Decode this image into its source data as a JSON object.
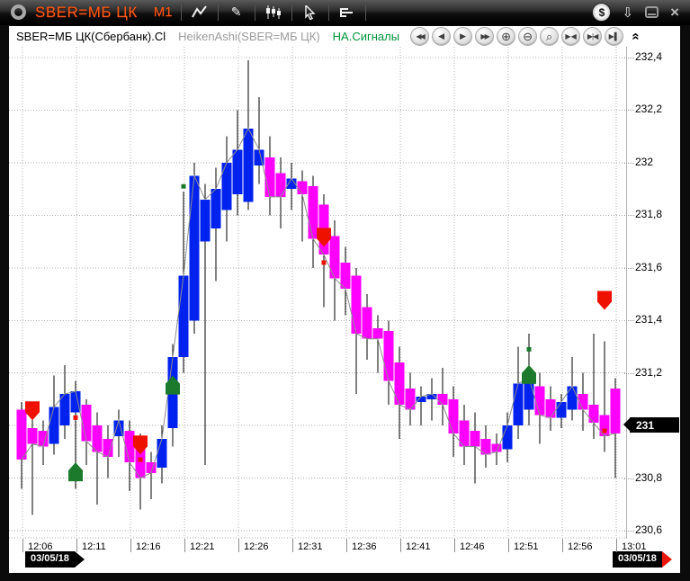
{
  "titlebar": {
    "ticker": "SBER=МБ ЦК",
    "timeframe": "M1"
  },
  "header": {
    "symbol": "SBER=МБ ЦК(Сбербанк).Cl",
    "indicator": "HeikenAshi(SBER=МБ ЦК)",
    "signals": "НА.Сигналы"
  },
  "icons": {
    "pencil": "✎",
    "dollar": "$",
    "download": "⇩",
    "close": "×",
    "rewind": "◀◀",
    "prev": "◀",
    "next": "▶",
    "ffwd": "▶▶",
    "zoom_in": "⊕",
    "zoom_out": "⊖",
    "zoom_box": "⌕",
    "squeeze": "▶◀",
    "squeeze_alt": "▶|◀",
    "go_end": "▶▌",
    "collapse": "«"
  },
  "axis": {
    "date_left": "03/05/18",
    "date_right": "03/05/18"
  },
  "chart_data": {
    "type": "candlestick-heikenashi",
    "title": "SBER=МБ ЦК(Сбербанк).Cl",
    "indicator": "HeikenAshi(SBER=МБ ЦК)",
    "signals_label": "НА.Сигналы",
    "ylim": [
      230.6,
      232.4
    ],
    "y_step": 0.2,
    "grid": true,
    "bull_color": "#0022ee",
    "bear_color": "#ff00ff",
    "signal_up_color": "#1c7a2d",
    "signal_down_color": "#ee1100",
    "line_color": "#8c8c8c",
    "last_price": {
      "label": "231",
      "price": 231.0
    },
    "y_ticks": [
      {
        "label": "232,4",
        "price": 232.4
      },
      {
        "label": "232,2",
        "price": 232.2
      },
      {
        "label": "232",
        "price": 232.0
      },
      {
        "label": "231,8",
        "price": 231.8
      },
      {
        "label": "231,6",
        "price": 231.6
      },
      {
        "label": "231,4",
        "price": 231.4
      },
      {
        "label": "231,2",
        "price": 231.2
      },
      {
        "label": "230,8",
        "price": 230.8
      },
      {
        "label": "230,6",
        "price": 230.6
      }
    ],
    "x_ticks": [
      "12:06",
      "12:11",
      "12:16",
      "12:21",
      "12:26",
      "12:31",
      "12:36",
      "12:41",
      "12:46",
      "12:51",
      "12:56",
      "13:01"
    ],
    "candles": [
      {
        "t": "12:06",
        "o": 231.06,
        "h": 231.09,
        "l": 230.76,
        "c": 230.87
      },
      {
        "t": "12:07",
        "o": 230.99,
        "h": 231.04,
        "l": 230.66,
        "c": 230.93
      },
      {
        "t": "12:08",
        "o": 230.98,
        "h": 231.02,
        "l": 230.85,
        "c": 230.92
      },
      {
        "t": "12:09",
        "o": 230.93,
        "h": 231.19,
        "l": 230.89,
        "c": 231.07
      },
      {
        "t": "12:10",
        "o": 231.0,
        "h": 231.23,
        "l": 230.95,
        "c": 231.12
      },
      {
        "t": "12:11",
        "o": 231.05,
        "h": 231.17,
        "l": 230.76,
        "c": 231.13
      },
      {
        "t": "12:12",
        "o": 231.08,
        "h": 231.1,
        "l": 230.85,
        "c": 230.94
      },
      {
        "t": "12:13",
        "o": 231.0,
        "h": 231.05,
        "l": 230.7,
        "c": 230.9
      },
      {
        "t": "12:14",
        "o": 230.95,
        "h": 231.0,
        "l": 230.8,
        "c": 230.88
      },
      {
        "t": "12:15",
        "o": 230.96,
        "h": 231.06,
        "l": 230.88,
        "c": 231.02
      },
      {
        "t": "12:16",
        "o": 230.98,
        "h": 231.02,
        "l": 230.75,
        "c": 230.86
      },
      {
        "t": "12:17",
        "o": 230.93,
        "h": 230.97,
        "l": 230.68,
        "c": 230.8
      },
      {
        "t": "12:18",
        "o": 230.86,
        "h": 230.9,
        "l": 230.72,
        "c": 230.82
      },
      {
        "t": "12:19",
        "o": 230.84,
        "h": 231.0,
        "l": 230.78,
        "c": 230.95
      },
      {
        "t": "12:20",
        "o": 230.99,
        "h": 231.31,
        "l": 230.92,
        "c": 231.26
      },
      {
        "t": "12:21",
        "o": 231.26,
        "h": 231.89,
        "l": 231.2,
        "c": 231.57
      },
      {
        "t": "12:22",
        "o": 231.4,
        "h": 232.0,
        "l": 231.35,
        "c": 231.95
      },
      {
        "t": "12:23",
        "o": 231.7,
        "h": 231.92,
        "l": 230.85,
        "c": 231.86
      },
      {
        "t": "12:24",
        "o": 231.75,
        "h": 231.98,
        "l": 231.55,
        "c": 231.9
      },
      {
        "t": "12:25",
        "o": 231.82,
        "h": 232.1,
        "l": 231.7,
        "c": 232.0
      },
      {
        "t": "12:26",
        "o": 231.88,
        "h": 232.2,
        "l": 231.8,
        "c": 232.05
      },
      {
        "t": "12:27",
        "o": 231.85,
        "h": 232.39,
        "l": 231.82,
        "c": 232.13
      },
      {
        "t": "12:28",
        "o": 231.99,
        "h": 232.25,
        "l": 231.92,
        "c": 232.05
      },
      {
        "t": "12:29",
        "o": 232.02,
        "h": 232.1,
        "l": 231.8,
        "c": 231.87
      },
      {
        "t": "12:30",
        "o": 231.96,
        "h": 232.02,
        "l": 231.75,
        "c": 231.87
      },
      {
        "t": "12:31",
        "o": 231.9,
        "h": 232.0,
        "l": 231.82,
        "c": 231.94
      },
      {
        "t": "12:32",
        "o": 231.93,
        "h": 231.97,
        "l": 231.7,
        "c": 231.88
      },
      {
        "t": "12:33",
        "o": 231.91,
        "h": 231.95,
        "l": 231.6,
        "c": 231.71
      },
      {
        "t": "12:34",
        "o": 231.84,
        "h": 231.88,
        "l": 231.45,
        "c": 231.65
      },
      {
        "t": "12:35",
        "o": 231.72,
        "h": 231.78,
        "l": 231.4,
        "c": 231.56
      },
      {
        "t": "12:36",
        "o": 231.62,
        "h": 231.68,
        "l": 231.42,
        "c": 231.52
      },
      {
        "t": "12:37",
        "o": 231.57,
        "h": 231.6,
        "l": 231.12,
        "c": 231.35
      },
      {
        "t": "12:38",
        "o": 231.45,
        "h": 231.5,
        "l": 231.25,
        "c": 231.33
      },
      {
        "t": "12:39",
        "o": 231.37,
        "h": 231.42,
        "l": 231.2,
        "c": 231.33
      },
      {
        "t": "12:40",
        "o": 231.36,
        "h": 231.4,
        "l": 231.08,
        "c": 231.17
      },
      {
        "t": "12:41",
        "o": 231.24,
        "h": 231.3,
        "l": 230.95,
        "c": 231.08
      },
      {
        "t": "12:42",
        "o": 231.14,
        "h": 231.2,
        "l": 231.0,
        "c": 231.06
      },
      {
        "t": "12:43",
        "o": 231.09,
        "h": 231.15,
        "l": 231.0,
        "c": 231.11
      },
      {
        "t": "12:44",
        "o": 231.1,
        "h": 231.18,
        "l": 231.02,
        "c": 231.12
      },
      {
        "t": "12:45",
        "o": 231.12,
        "h": 231.22,
        "l": 231.0,
        "c": 231.08
      },
      {
        "t": "12:46",
        "o": 231.1,
        "h": 231.15,
        "l": 230.88,
        "c": 230.97
      },
      {
        "t": "12:47",
        "o": 231.02,
        "h": 231.08,
        "l": 230.85,
        "c": 230.92
      },
      {
        "t": "12:48",
        "o": 230.98,
        "h": 231.05,
        "l": 230.78,
        "c": 230.92
      },
      {
        "t": "12:49",
        "o": 230.95,
        "h": 231.0,
        "l": 230.84,
        "c": 230.89
      },
      {
        "t": "12:50",
        "o": 230.93,
        "h": 230.97,
        "l": 230.85,
        "c": 230.9
      },
      {
        "t": "12:51",
        "o": 230.91,
        "h": 231.05,
        "l": 230.86,
        "c": 231.0
      },
      {
        "t": "12:52",
        "o": 231.0,
        "h": 231.3,
        "l": 230.95,
        "c": 231.16
      },
      {
        "t": "12:53",
        "o": 231.06,
        "h": 231.35,
        "l": 231.0,
        "c": 231.18
      },
      {
        "t": "12:54",
        "o": 231.15,
        "h": 231.2,
        "l": 230.93,
        "c": 231.04
      },
      {
        "t": "12:55",
        "o": 231.1,
        "h": 231.15,
        "l": 230.98,
        "c": 231.03
      },
      {
        "t": "12:56",
        "o": 231.03,
        "h": 231.12,
        "l": 230.99,
        "c": 231.09
      },
      {
        "t": "12:57",
        "o": 231.06,
        "h": 231.26,
        "l": 231.02,
        "c": 231.15
      },
      {
        "t": "12:58",
        "o": 231.12,
        "h": 231.2,
        "l": 230.98,
        "c": 231.06
      },
      {
        "t": "12:59",
        "o": 231.08,
        "h": 231.35,
        "l": 230.95,
        "c": 231.01
      },
      {
        "t": "13:00",
        "o": 231.04,
        "h": 231.32,
        "l": 230.9,
        "c": 230.96
      },
      {
        "t": "13:01",
        "o": 231.14,
        "h": 231.18,
        "l": 230.8,
        "c": 230.97
      }
    ],
    "signals": {
      "arrows": [
        {
          "i": 1,
          "dir": "down",
          "price": 231.02
        },
        {
          "i": 5,
          "dir": "up",
          "price": 230.86
        },
        {
          "i": 11,
          "dir": "down",
          "price": 230.89
        },
        {
          "i": 14,
          "dir": "up",
          "price": 231.19
        },
        {
          "i": 28,
          "dir": "down",
          "price": 231.68
        },
        {
          "i": 47,
          "dir": "up",
          "price": 231.23
        },
        {
          "i": 54,
          "dir": "down",
          "price": 231.44
        }
      ],
      "dots": [
        {
          "i": 5,
          "color": "red",
          "price": 231.03
        },
        {
          "i": 11,
          "color": "red",
          "price": 230.87
        },
        {
          "i": 15,
          "color": "green",
          "price": 231.91
        },
        {
          "i": 28,
          "color": "red",
          "price": 231.62
        },
        {
          "i": 47,
          "color": "green",
          "price": 231.29
        },
        {
          "i": 54,
          "color": "red",
          "price": 230.98
        }
      ]
    }
  }
}
